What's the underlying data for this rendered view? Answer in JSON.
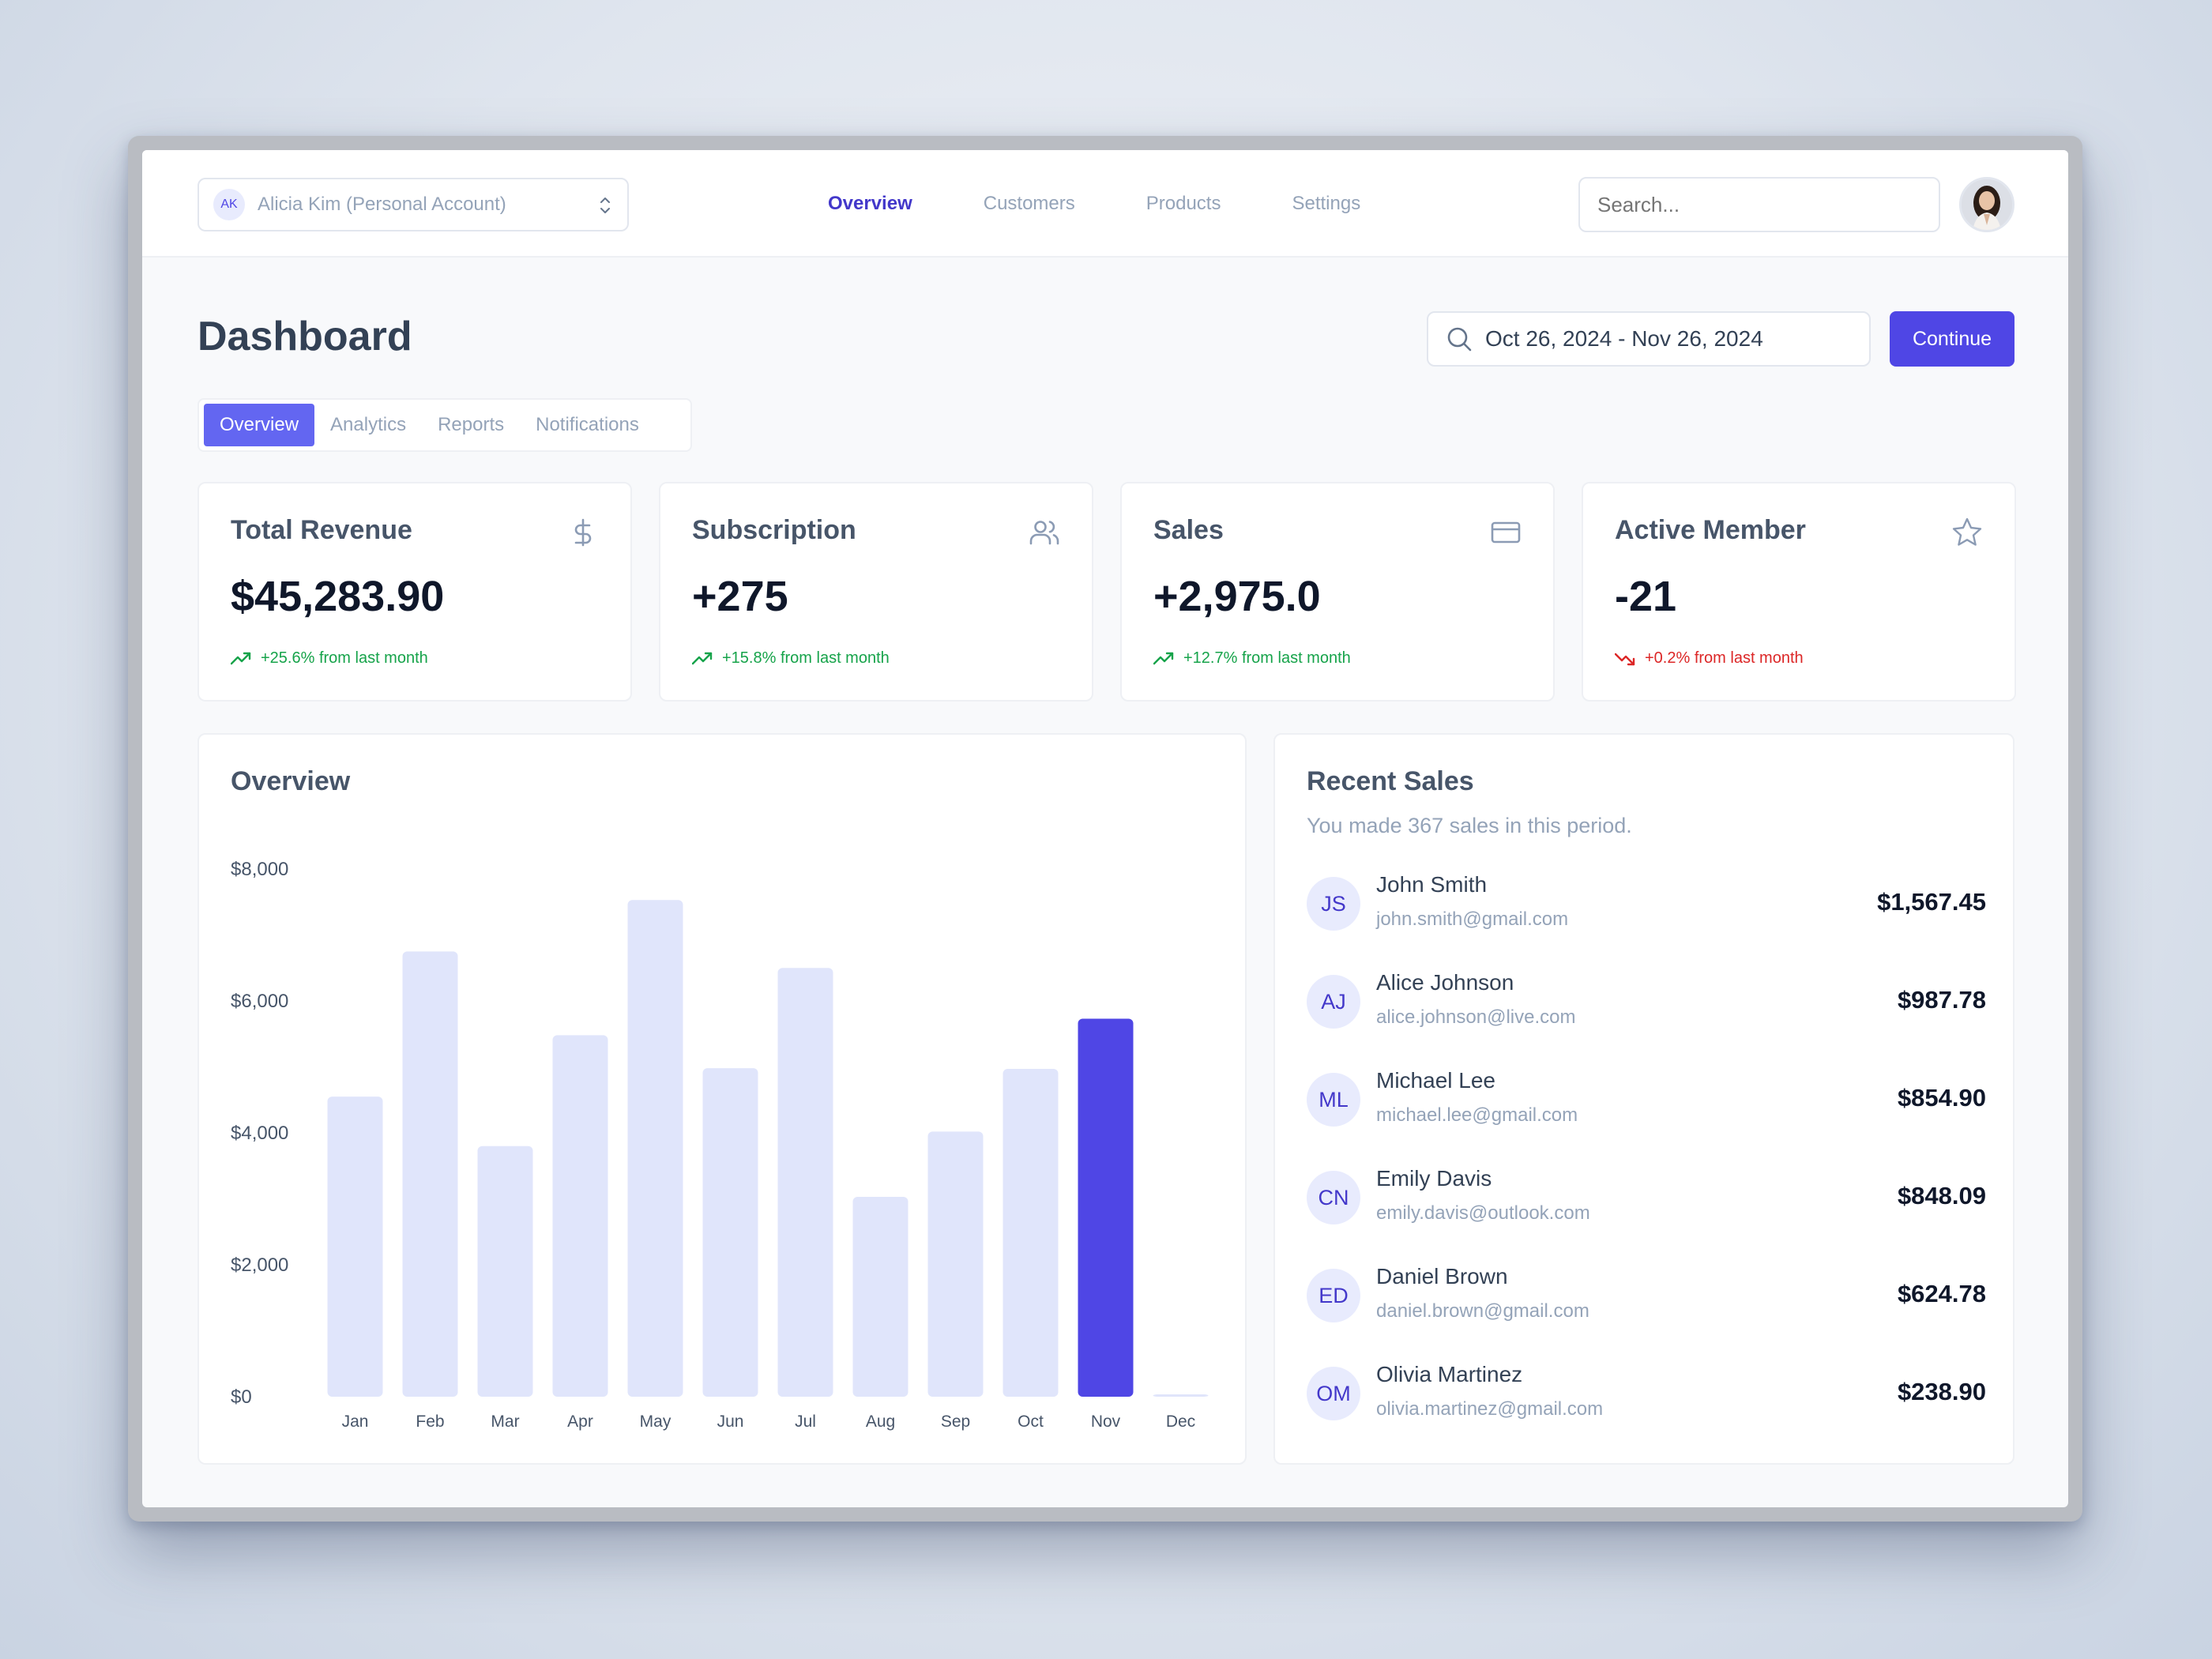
{
  "account": {
    "initials": "AK",
    "name": "Alicia Kim (Personal Account)"
  },
  "nav": {
    "links": [
      "Overview",
      "Customers",
      "Products",
      "Settings"
    ],
    "active": "Overview"
  },
  "search": {
    "placeholder": "Search..."
  },
  "header": {
    "title": "Dashboard",
    "date_range": "Oct 26, 2024 - Nov 26, 2024",
    "continue_label": "Continue"
  },
  "tabs": [
    "Overview",
    "Analytics",
    "Reports",
    "Notifications"
  ],
  "stats": [
    {
      "title": "Total Revenue",
      "value": "$45,283.90",
      "trend": "+25.6% from last month",
      "direction": "up",
      "icon": "dollar-icon"
    },
    {
      "title": "Subscription",
      "value": "+275",
      "trend": "+15.8% from last month",
      "direction": "up",
      "icon": "users-icon"
    },
    {
      "title": "Sales",
      "value": "+2,975.0",
      "trend": "+12.7% from last month",
      "direction": "up",
      "icon": "credit-card-icon"
    },
    {
      "title": "Active Member",
      "value": "-21",
      "trend": "+0.2% from last month",
      "direction": "down",
      "icon": "star-icon"
    }
  ],
  "colors": {
    "accent": "#4f46e5",
    "bar_light": "#e0e5fb",
    "trend_up": "#16a34a",
    "trend_down": "#dc2626"
  },
  "chart_data": {
    "type": "bar",
    "title": "Overview",
    "categories": [
      "Jan",
      "Feb",
      "Mar",
      "Apr",
      "May",
      "Jun",
      "Jul",
      "Aug",
      "Sep",
      "Oct",
      "Nov",
      "Dec"
    ],
    "values": [
      4550,
      6750,
      3800,
      5480,
      7530,
      4980,
      6500,
      3030,
      4020,
      4970,
      5730,
      0
    ],
    "highlight": "Nov",
    "ylim": [
      0,
      8000
    ],
    "yticks": [
      "$8,000",
      "$6,000",
      "$4,000",
      "$2,000",
      "$0"
    ],
    "ytick_values": [
      8000,
      6000,
      4000,
      2000,
      0
    ],
    "xlabel": "",
    "ylabel": "",
    "grid": false
  },
  "recent_sales": {
    "title": "Recent Sales",
    "subtitle": "You made 367 sales in this period.",
    "items": [
      {
        "initials": "JS",
        "name": "John Smith",
        "email": "john.smith@gmail.com",
        "amount": "$1,567.45"
      },
      {
        "initials": "AJ",
        "name": "Alice Johnson",
        "email": "alice.johnson@live.com",
        "amount": "$987.78"
      },
      {
        "initials": "ML",
        "name": "Michael Lee",
        "email": "michael.lee@gmail.com",
        "amount": "$854.90"
      },
      {
        "initials": "CN",
        "name": "Emily Davis",
        "email": "emily.davis@outlook.com",
        "amount": "$848.09"
      },
      {
        "initials": "ED",
        "name": "Daniel Brown",
        "email": "daniel.brown@gmail.com",
        "amount": "$624.78"
      },
      {
        "initials": "OM",
        "name": "Olivia Martinez",
        "email": "olivia.martinez@gmail.com",
        "amount": "$238.90"
      }
    ]
  }
}
